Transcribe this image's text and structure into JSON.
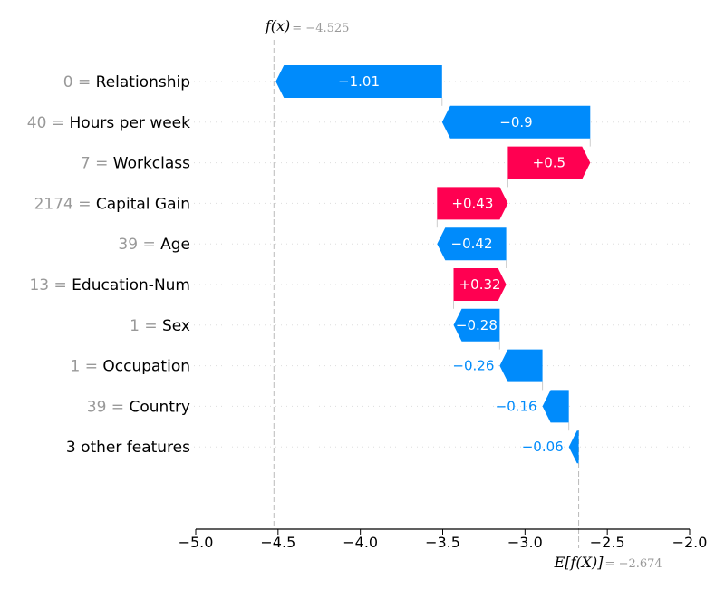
{
  "chart_data": {
    "type": "waterfall",
    "xlim": [
      -5.0,
      -2.0
    ],
    "xticks": [
      "−5.0",
      "−4.5",
      "−4.0",
      "−3.5",
      "−3.0",
      "−2.5",
      "−2.0"
    ],
    "xtick_values": [
      -5.0,
      -4.5,
      -4.0,
      -3.5,
      -3.0,
      -2.5,
      -2.0
    ],
    "fx": {
      "label": "f(x)",
      "value_text": "= −4.525",
      "value": -4.525
    },
    "base": {
      "label": "E[f(X)]",
      "value_text": "= −2.674",
      "value": -2.674
    },
    "features": [
      {
        "value": "0 =",
        "name": "Relationship",
        "contribution": -1.01,
        "label": "−1.01"
      },
      {
        "value": "40 =",
        "name": "Hours per week",
        "contribution": -0.9,
        "label": "−0.9"
      },
      {
        "value": "7 =",
        "name": "Workclass",
        "contribution": 0.5,
        "label": "+0.5"
      },
      {
        "value": "2174 =",
        "name": "Capital Gain",
        "contribution": 0.43,
        "label": "+0.43"
      },
      {
        "value": "39 =",
        "name": "Age",
        "contribution": -0.42,
        "label": "−0.42"
      },
      {
        "value": "13 =",
        "name": "Education-Num",
        "contribution": 0.32,
        "label": "+0.32"
      },
      {
        "value": "1 =",
        "name": "Sex",
        "contribution": -0.28,
        "label": "−0.28"
      },
      {
        "value": "1 =",
        "name": "Occupation",
        "contribution": -0.26,
        "label": "−0.26"
      },
      {
        "value": "39 =",
        "name": "Country",
        "contribution": -0.16,
        "label": "−0.16"
      },
      {
        "value": "",
        "name": "3 other features",
        "contribution": -0.06,
        "label": "−0.06"
      }
    ],
    "colors": {
      "positive": "#ff0051",
      "negative": "#008bfb"
    }
  }
}
